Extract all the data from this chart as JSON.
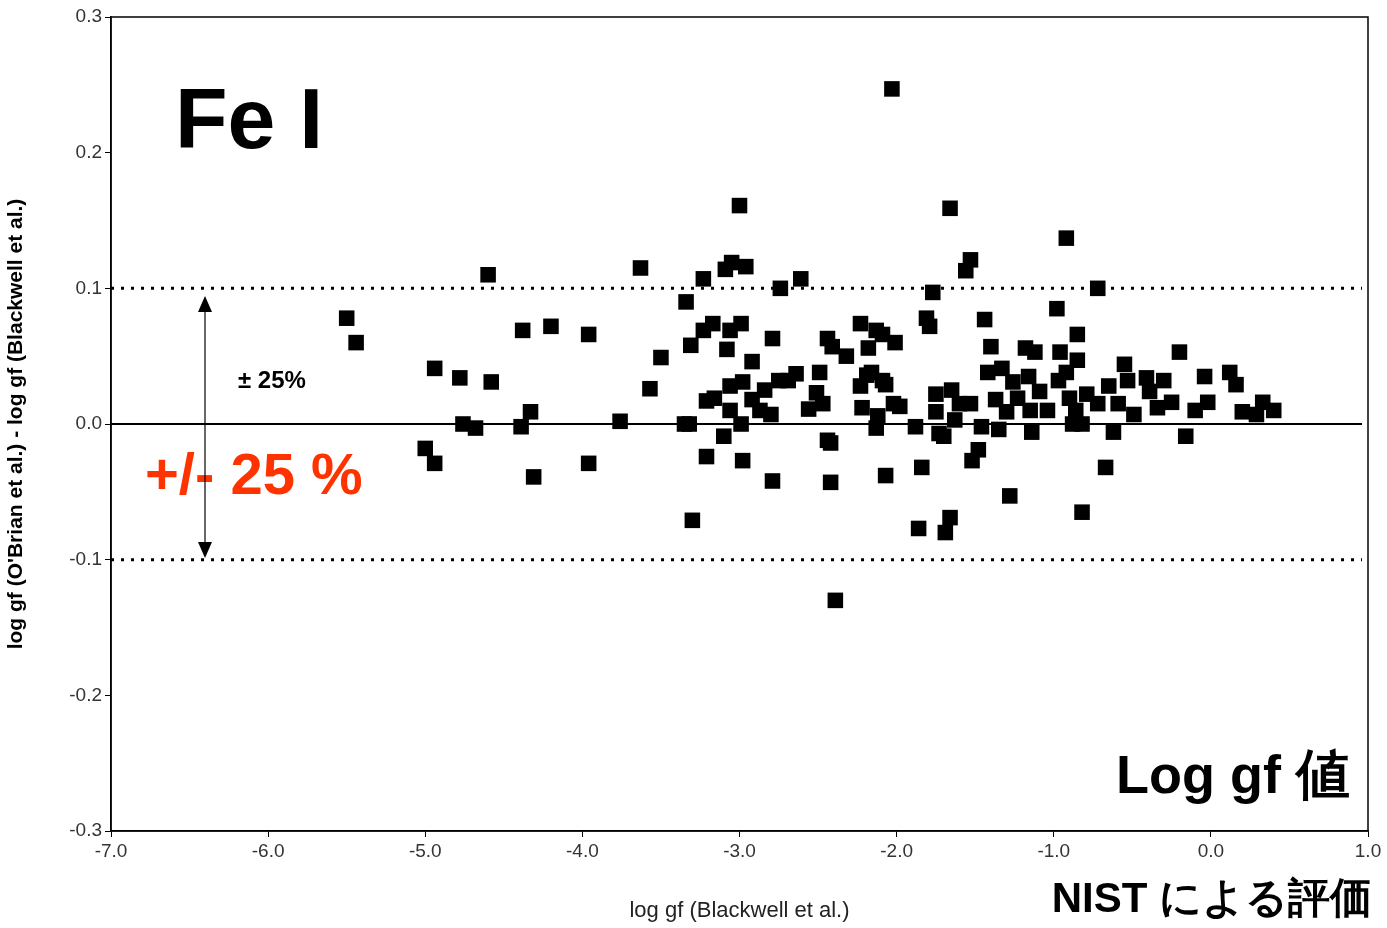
{
  "chart_data": {
    "type": "scatter",
    "xlabel": "log gf (Blackwell et al.)",
    "ylabel": "log gf (O'Brian et al.) - log gf (Blackwell et al.)",
    "annotations": [
      "Fe I",
      "± 25%",
      "+/- 25 %",
      "Log gf 値",
      "NIST による評価"
    ],
    "xlim": [
      -7,
      1
    ],
    "ylim": [
      -0.3,
      0.3
    ],
    "xticks": [
      {
        "value": -7,
        "label": "-7.0"
      },
      {
        "value": -6,
        "label": "-6.0"
      },
      {
        "value": -5,
        "label": "-5.0"
      },
      {
        "value": -4,
        "label": "-4.0"
      },
      {
        "value": -3,
        "label": "-3.0"
      },
      {
        "value": -2,
        "label": "-2.0"
      },
      {
        "value": -1,
        "label": "-1.0"
      },
      {
        "value": 0,
        "label": "0.0"
      },
      {
        "value": 1,
        "label": "1.0"
      }
    ],
    "yticks": [
      -0.3,
      -0.2,
      -0.1,
      {
        "value": 0,
        "label": "0.0"
      },
      0.1,
      0.2,
      0.3
    ],
    "marker": "square",
    "legend": false,
    "ref_lines": [
      {
        "axis": "y",
        "value": 0.1,
        "line_style": "dotted",
        "color": "#000000"
      },
      {
        "axis": "y",
        "value": -0.1,
        "line_style": "dotted",
        "color": "#000000"
      },
      {
        "axis": "y",
        "value": 0,
        "line_style": "solid",
        "color": "#000000"
      }
    ],
    "series": [
      {
        "color": "#000000",
        "x": [
          -5.5,
          -5.44,
          -4.94,
          -5.0,
          -4.94,
          -4.78,
          -4.76,
          -4.68,
          -4.6,
          -4.58,
          -4.38,
          -4.39,
          -4.33,
          -4.31,
          -4.2,
          -3.96,
          -3.96,
          -3.76,
          -3.63,
          -3.57,
          -3.5,
          -3.34,
          -3.35,
          -3.32,
          -3.31,
          -3.3,
          -3.23,
          -3.23,
          -3.21,
          -3.21,
          -3.17,
          -3.16,
          -3.1,
          -3.09,
          -3.05,
          -3.08,
          -3.06,
          -3.06,
          -3.06,
          -3.0,
          -2.96,
          -2.99,
          -2.98,
          -2.99,
          -2.98,
          -2.92,
          -2.92,
          -2.87,
          -2.84,
          -2.79,
          -2.79,
          -2.8,
          -2.75,
          -2.74,
          -2.69,
          -2.64,
          -2.61,
          -2.56,
          -2.51,
          -2.49,
          -2.47,
          -2.44,
          -2.42,
          -2.42,
          -2.44,
          -2.41,
          -2.39,
          -2.32,
          -2.23,
          -2.23,
          -2.22,
          -2.19,
          -2.18,
          -2.16,
          -2.13,
          -2.13,
          -2.12,
          -2.09,
          -2.09,
          -2.07,
          -2.07,
          -2.03,
          -2.01,
          -2.02,
          -1.98,
          -1.88,
          -1.86,
          -1.84,
          -1.81,
          -1.79,
          -1.77,
          -1.75,
          -1.75,
          -1.73,
          -1.7,
          -1.69,
          -1.66,
          -1.66,
          -1.65,
          -1.63,
          -1.6,
          -1.56,
          -1.53,
          -1.53,
          -1.52,
          -1.48,
          -1.46,
          -1.44,
          -1.4,
          -1.42,
          -1.37,
          -1.35,
          -1.33,
          -1.3,
          -1.28,
          -1.26,
          -1.23,
          -1.18,
          -1.16,
          -1.15,
          -1.14,
          -1.12,
          -1.09,
          -1.04,
          -0.98,
          -0.96,
          -0.97,
          -0.92,
          -0.92,
          -0.9,
          -0.88,
          -0.86,
          -0.85,
          -0.85,
          -0.82,
          -0.82,
          -0.79,
          -0.72,
          -0.72,
          -0.67,
          -0.65,
          -0.62,
          -0.59,
          -0.55,
          -0.53,
          -0.49,
          -0.41,
          -0.39,
          -0.34,
          -0.3,
          -0.25,
          -0.2,
          -0.16,
          -0.1,
          -0.04,
          -0.02,
          0.12,
          0.16,
          0.2,
          0.29,
          0.33,
          0.4
        ],
        "values": [
          0.078,
          0.06,
          0.041,
          -0.018,
          -0.029,
          0.034,
          0.0,
          -0.003,
          0.11,
          0.031,
          0.069,
          -0.002,
          0.009,
          -0.039,
          0.072,
          0.066,
          -0.029,
          0.002,
          0.115,
          0.026,
          0.049,
          0.09,
          0.0,
          0.0,
          0.058,
          -0.071,
          0.107,
          0.069,
          0.017,
          -0.024,
          0.074,
          0.019,
          -0.009,
          0.114,
          0.119,
          0.055,
          0.069,
          0.028,
          0.01,
          0.161,
          0.116,
          0.074,
          0.031,
          0.0,
          -0.027,
          0.046,
          0.018,
          0.01,
          0.025,
          0.063,
          -0.042,
          0.007,
          0.032,
          0.1,
          0.032,
          0.037,
          0.107,
          0.011,
          0.023,
          0.038,
          0.015,
          -0.012,
          -0.014,
          -0.043,
          0.063,
          0.057,
          -0.13,
          0.05,
          0.074,
          0.028,
          0.012,
          0.036,
          0.056,
          0.038,
          0.069,
          -0.003,
          0.006,
          0.066,
          0.032,
          0.029,
          -0.038,
          0.247,
          0.06,
          0.015,
          0.013,
          -0.002,
          -0.077,
          -0.032,
          0.078,
          0.072,
          0.097,
          0.022,
          0.009,
          -0.007,
          -0.009,
          -0.08,
          -0.069,
          0.159,
          0.025,
          0.003,
          0.015,
          0.113,
          0.121,
          0.015,
          -0.027,
          -0.019,
          -0.002,
          0.077,
          0.057,
          0.038,
          0.018,
          -0.004,
          0.041,
          0.009,
          -0.053,
          0.031,
          0.019,
          0.056,
          0.035,
          0.01,
          -0.006,
          0.053,
          0.024,
          0.01,
          0.085,
          0.053,
          0.032,
          0.137,
          0.038,
          0.019,
          0.0,
          0.01,
          0.047,
          0.066,
          -0.065,
          0.0,
          0.022,
          0.1,
          0.015,
          -0.032,
          0.028,
          -0.006,
          0.015,
          0.044,
          0.032,
          0.007,
          0.034,
          0.024,
          0.012,
          0.032,
          0.016,
          0.053,
          -0.009,
          0.01,
          0.035,
          0.016,
          0.038,
          0.029,
          0.009,
          0.007,
          0.016,
          0.01
        ]
      }
    ]
  }
}
